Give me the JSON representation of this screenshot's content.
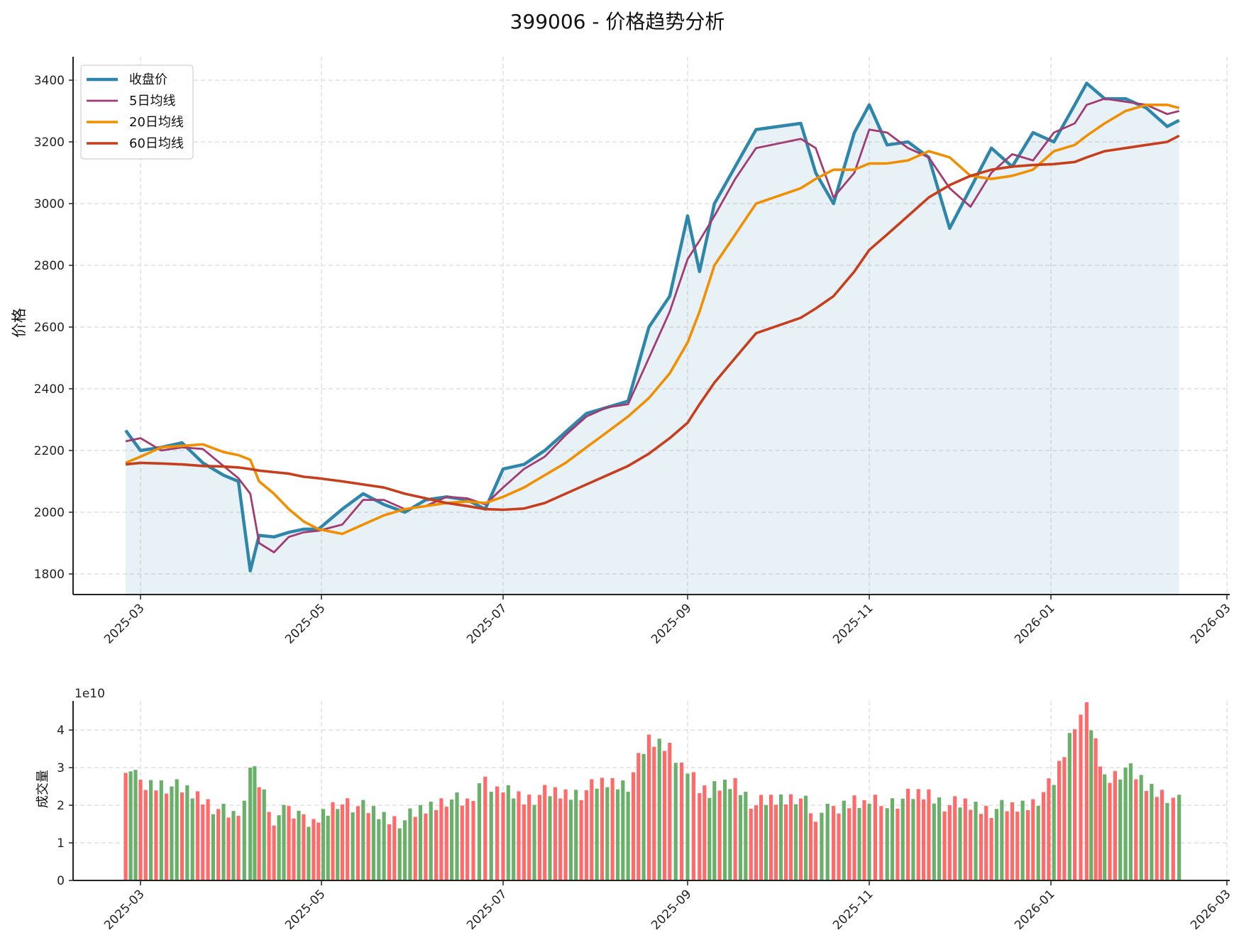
{
  "figure": {
    "title": "399006 - 价格趋势分析"
  },
  "chart_data": [
    {
      "type": "line",
      "panel": "price",
      "title": "399006 - 价格趋势分析",
      "xlabel": "",
      "ylabel": "价格",
      "ylim": [
        1730,
        3470
      ],
      "yticks": [
        1800,
        2000,
        2200,
        2400,
        2600,
        2800,
        3000,
        3200,
        3400
      ],
      "xticks": [
        "2025-03",
        "2025-05",
        "2025-07",
        "2025-09",
        "2025-11",
        "2026-01",
        "2026-03"
      ],
      "grid": true,
      "legend_position": "upper left",
      "fill_under_close": true,
      "x": [
        "2025-02-24",
        "2025-03-01",
        "2025-03-08",
        "2025-03-15",
        "2025-03-22",
        "2025-03-29",
        "2025-04-03",
        "2025-04-07",
        "2025-04-10",
        "2025-04-15",
        "2025-04-20",
        "2025-04-25",
        "2025-04-30",
        "2025-05-08",
        "2025-05-15",
        "2025-05-22",
        "2025-05-29",
        "2025-06-05",
        "2025-06-12",
        "2025-06-19",
        "2025-06-25",
        "2025-07-01",
        "2025-07-08",
        "2025-07-15",
        "2025-07-22",
        "2025-07-29",
        "2025-08-05",
        "2025-08-12",
        "2025-08-19",
        "2025-08-26",
        "2025-09-01",
        "2025-09-05",
        "2025-09-10",
        "2025-09-17",
        "2025-09-24",
        "2025-10-09",
        "2025-10-14",
        "2025-10-20",
        "2025-10-27",
        "2025-11-01",
        "2025-11-07",
        "2025-11-14",
        "2025-11-21",
        "2025-11-28",
        "2025-12-05",
        "2025-12-12",
        "2025-12-19",
        "2025-12-26",
        "2026-01-02",
        "2026-01-09",
        "2026-01-13",
        "2026-01-19",
        "2026-01-26",
        "2026-02-02",
        "2026-02-09",
        "2026-02-13"
      ],
      "series": [
        {
          "name": "收盘价",
          "color": "#2e86ab",
          "width": 4.5,
          "values": [
            2265,
            2200,
            2210,
            2225,
            2160,
            2120,
            2100,
            1810,
            1925,
            1920,
            1935,
            1945,
            1945,
            2010,
            2060,
            2025,
            2000,
            2040,
            2050,
            2040,
            2010,
            2140,
            2155,
            2200,
            2260,
            2320,
            2340,
            2360,
            2600,
            2700,
            2960,
            2780,
            3000,
            3120,
            3240,
            3260,
            3100,
            3000,
            3230,
            3320,
            3190,
            3200,
            3150,
            2920,
            3050,
            3180,
            3120,
            3230,
            3200,
            3320,
            3390,
            3340,
            3340,
            3310,
            3250,
            3270
          ]
        },
        {
          "name": "5日均线",
          "color": "#a23b72",
          "width": 2.8,
          "values": [
            2230,
            2240,
            2200,
            2210,
            2205,
            2150,
            2110,
            2060,
            1900,
            1870,
            1920,
            1935,
            1940,
            1960,
            2040,
            2040,
            2010,
            2020,
            2050,
            2045,
            2025,
            2080,
            2140,
            2180,
            2250,
            2310,
            2340,
            2350,
            2500,
            2650,
            2820,
            2880,
            2960,
            3080,
            3180,
            3210,
            3180,
            3020,
            3100,
            3240,
            3230,
            3180,
            3150,
            3050,
            2990,
            3100,
            3160,
            3140,
            3230,
            3260,
            3320,
            3340,
            3330,
            3320,
            3290,
            3300
          ]
        },
        {
          "name": "20日均线",
          "color": "#f18f01",
          "width": 3.6,
          "values": [
            2160,
            2180,
            2210,
            2215,
            2220,
            2195,
            2185,
            2170,
            2100,
            2060,
            2010,
            1970,
            1945,
            1930,
            1960,
            1990,
            2010,
            2020,
            2030,
            2035,
            2030,
            2050,
            2080,
            2120,
            2160,
            2210,
            2260,
            2310,
            2370,
            2450,
            2550,
            2650,
            2800,
            2900,
            3000,
            3050,
            3080,
            3110,
            3110,
            3130,
            3130,
            3140,
            3170,
            3150,
            3090,
            3080,
            3090,
            3110,
            3170,
            3190,
            3220,
            3260,
            3300,
            3320,
            3320,
            3310
          ]
        },
        {
          "name": "60日均线",
          "color": "#c73e1d",
          "width": 3.6,
          "values": [
            2155,
            2160,
            2158,
            2155,
            2150,
            2148,
            2145,
            2140,
            2135,
            2130,
            2125,
            2115,
            2110,
            2100,
            2090,
            2080,
            2060,
            2045,
            2030,
            2020,
            2010,
            2008,
            2012,
            2030,
            2060,
            2090,
            2120,
            2150,
            2190,
            2240,
            2290,
            2350,
            2420,
            2500,
            2580,
            2630,
            2660,
            2700,
            2780,
            2850,
            2900,
            2960,
            3020,
            3060,
            3090,
            3110,
            3120,
            3125,
            3128,
            3135,
            3150,
            3170,
            3180,
            3190,
            3200,
            3220
          ]
        }
      ]
    },
    {
      "type": "bar",
      "panel": "volume",
      "xlabel": "",
      "ylabel": "成交量",
      "offset_label": "1e10",
      "ylim": [
        0,
        4.8
      ],
      "yticks": [
        0,
        1,
        2,
        3,
        4
      ],
      "xticks": [
        "2025-03",
        "2025-05",
        "2025-07",
        "2025-09",
        "2025-11",
        "2026-01",
        "2026-03"
      ],
      "grid": true,
      "up_color": "#ff6b6b",
      "down_color": "#6ab06a",
      "unit_multiplier": 10000000000,
      "x": [
        "2025-02-24",
        "2025-03-01",
        "2025-03-08",
        "2025-03-15",
        "2025-03-22",
        "2025-03-29",
        "2025-04-03",
        "2025-04-07",
        "2025-04-10",
        "2025-04-15",
        "2025-04-20",
        "2025-04-25",
        "2025-04-30",
        "2025-05-08",
        "2025-05-15",
        "2025-05-22",
        "2025-05-29",
        "2025-06-05",
        "2025-06-12",
        "2025-06-19",
        "2025-06-25",
        "2025-07-01",
        "2025-07-08",
        "2025-07-15",
        "2025-07-22",
        "2025-07-29",
        "2025-08-05",
        "2025-08-12",
        "2025-08-19",
        "2025-08-26",
        "2025-09-01",
        "2025-09-05",
        "2025-09-10",
        "2025-09-17",
        "2025-09-24",
        "2025-10-09",
        "2025-10-14",
        "2025-10-20",
        "2025-10-27",
        "2025-11-01",
        "2025-11-07",
        "2025-11-14",
        "2025-11-21",
        "2025-11-28",
        "2025-12-05",
        "2025-12-12",
        "2025-12-19",
        "2025-12-26",
        "2026-01-02",
        "2026-01-09",
        "2026-01-13",
        "2026-01-19",
        "2026-01-26",
        "2026-02-02",
        "2026-02-09",
        "2026-02-13"
      ],
      "values": [
        3.1,
        2.5,
        2.6,
        2.4,
        2.2,
        1.8,
        1.6,
        3.0,
        2.6,
        1.7,
        1.8,
        1.7,
        1.6,
        2.2,
        1.9,
        1.7,
        1.6,
        1.9,
        2.2,
        2.0,
        2.7,
        2.4,
        2.2,
        2.3,
        2.3,
        2.4,
        2.6,
        2.6,
        3.7,
        3.6,
        2.9,
        2.5,
        2.4,
        2.6,
        2.0,
        2.3,
        1.8,
        1.8,
        2.2,
        2.1,
        2.1,
        2.2,
        2.3,
        2.0,
        2.0,
        1.9,
        1.9,
        2.1,
        2.6,
        4.2,
        4.5,
        2.7,
        3.0,
        2.5,
        2.3,
        2.1
      ],
      "up": [
        false,
        true,
        false,
        false,
        true,
        false,
        false,
        false,
        true,
        false,
        true,
        true,
        false,
        true,
        false,
        true,
        false,
        true,
        false,
        true,
        true,
        false,
        true,
        true,
        false,
        true,
        false,
        true,
        true,
        true,
        true,
        true,
        false,
        false,
        true,
        true,
        false,
        true,
        true,
        true,
        false,
        true,
        false,
        true,
        true,
        false,
        true,
        true,
        true,
        true,
        true,
        true,
        false,
        true,
        true,
        false
      ]
    }
  ]
}
